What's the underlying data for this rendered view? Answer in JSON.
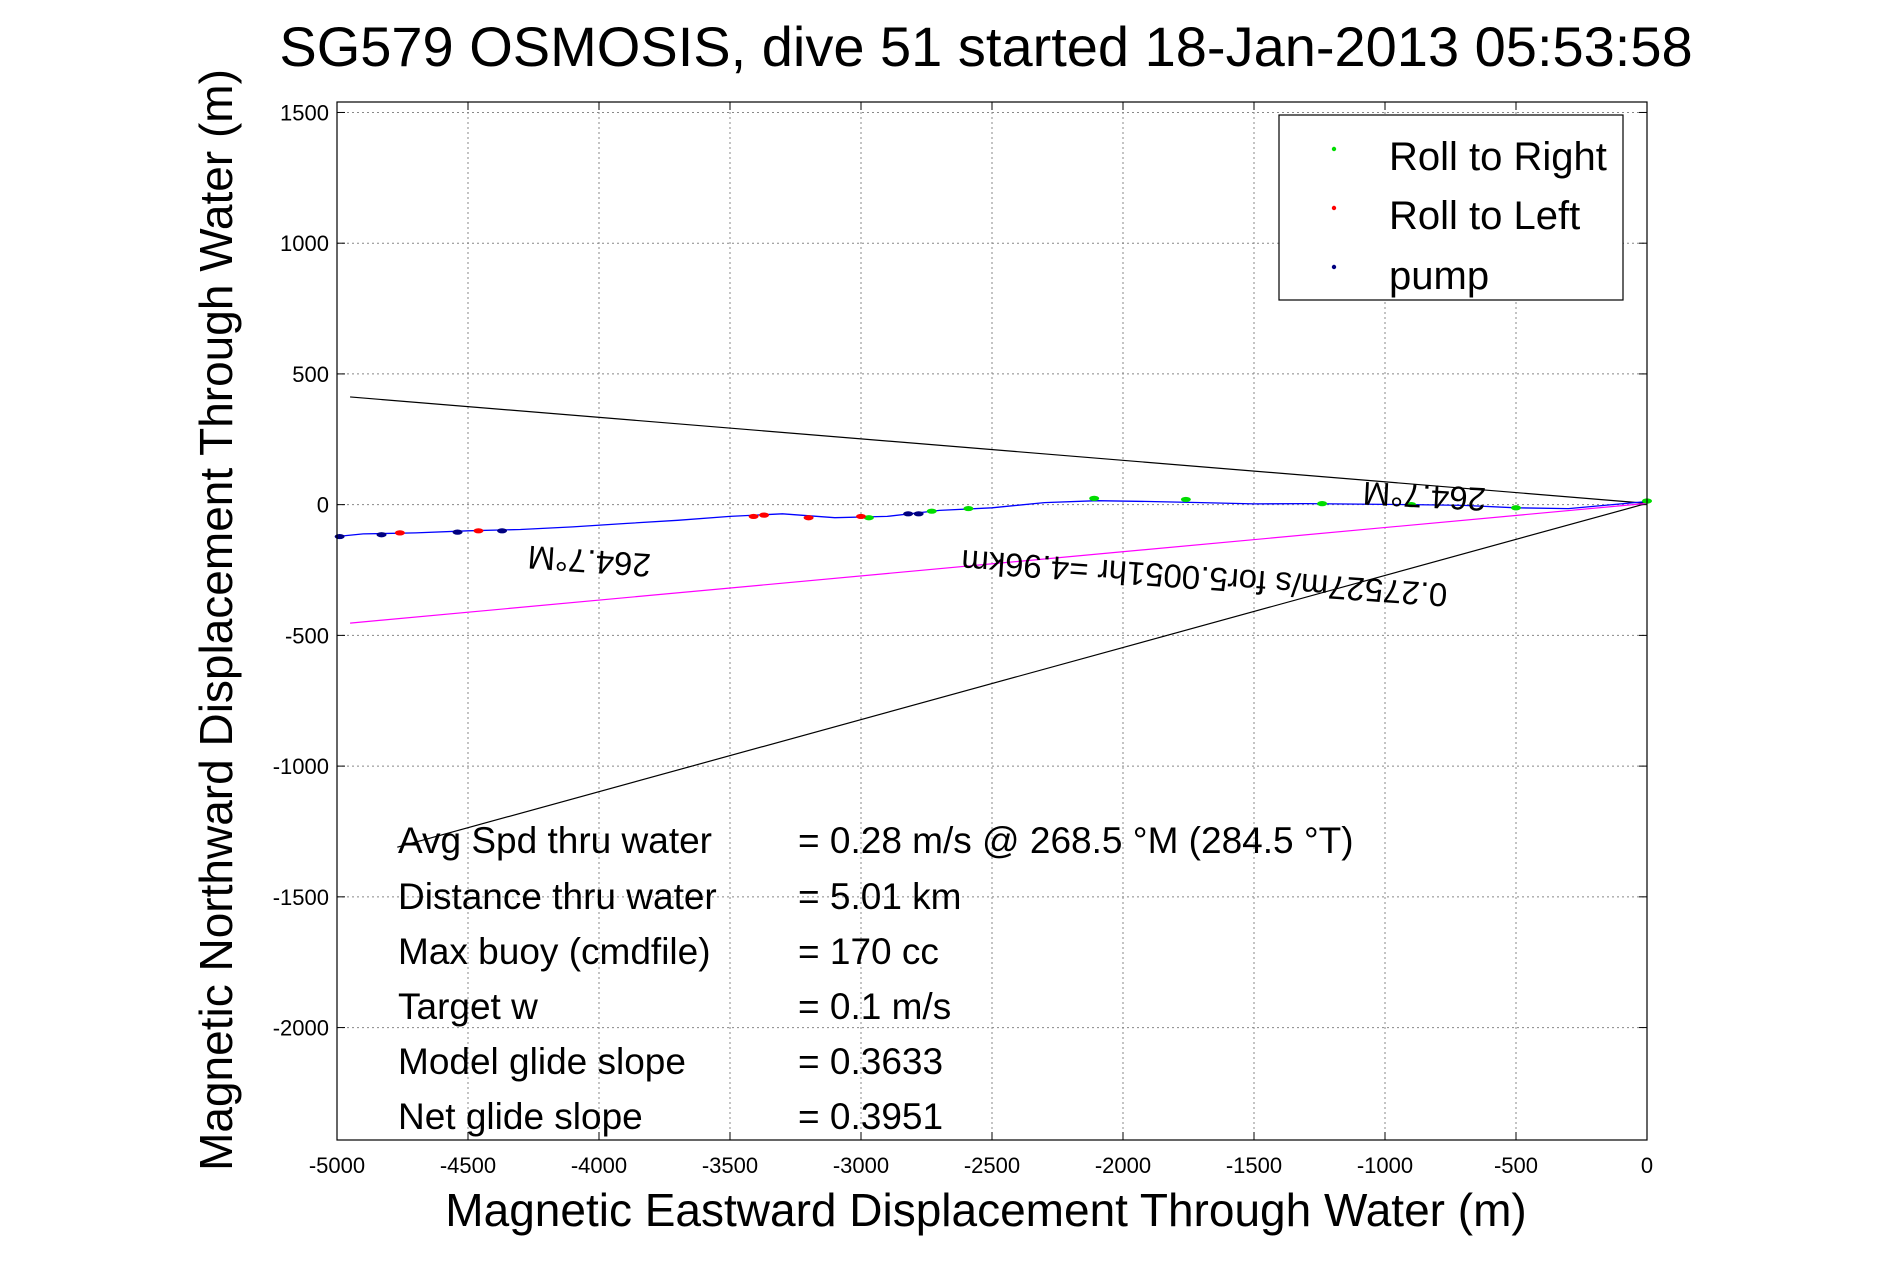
{
  "chart_data": {
    "type": "line",
    "title": "SG579 OSMOSIS, dive 51 started 18-Jan-2013 05:53:58",
    "xlabel": "Magnetic Eastward Displacement Through Water (m)",
    "ylabel": "Magnetic Northward Displacement Through Water (m)",
    "xlim": [
      -5000,
      0
    ],
    "ylim": [
      -2430,
      1540
    ],
    "xticks": [
      -5000,
      -4500,
      -4000,
      -3500,
      -3000,
      -2500,
      -2000,
      -1500,
      -1000,
      -500,
      0
    ],
    "yticks": [
      -2000,
      -1500,
      -1000,
      -500,
      0,
      500,
      1000,
      1500
    ],
    "xtick_labels": [
      "-5000",
      "-4500",
      "-4000",
      "-3500",
      "-3000",
      "-2500",
      "-2000",
      "-1500",
      "-1000",
      "-500",
      "0"
    ],
    "ytick_labels": [
      "-2000",
      "-1500",
      "-1000",
      "-500",
      "0",
      "500",
      "1000",
      "1500"
    ],
    "grid": true,
    "legend_position": "top-right",
    "legend": [
      {
        "label": "Roll to Right",
        "color": "#00dd00"
      },
      {
        "label": "Roll to Left",
        "color": "#ff0000"
      },
      {
        "label": "pump",
        "color": "#000080"
      }
    ],
    "track": {
      "color": "#0000ff",
      "x": [
        0,
        -300,
        -500,
        -700,
        -900,
        -1100,
        -1300,
        -1500,
        -1700,
        -1900,
        -2100,
        -2300,
        -2500,
        -2700,
        -2900,
        -3100,
        -3300,
        -3500,
        -3700,
        -3900,
        -4100,
        -4300,
        -4500,
        -4700,
        -4900,
        -5000
      ],
      "y": [
        12,
        -15,
        -12,
        -3,
        0,
        2,
        4,
        3,
        8,
        12,
        15,
        8,
        -12,
        -22,
        -45,
        -50,
        -35,
        -45,
        -60,
        -72,
        -85,
        -95,
        -100,
        -108,
        -112,
        -122
      ]
    },
    "points": {
      "roll_right": {
        "x": [
          0,
          -500,
          -900,
          -1240,
          -1760,
          -2110,
          -2590,
          -2730,
          -2970
        ],
        "y": [
          14,
          -12,
          0,
          4,
          20,
          24,
          -15,
          -25,
          -50
        ]
      },
      "roll_left": {
        "x": [
          -3000,
          -3200,
          -3370,
          -3410,
          -4460,
          -4760
        ],
        "y": [
          -45,
          -50,
          -40,
          -45,
          -100,
          -108
        ]
      },
      "pump": {
        "x": [
          -2820,
          -2780,
          -4370,
          -4540,
          -4830,
          -4990
        ],
        "y": [
          -35,
          -35,
          -100,
          -105,
          -115,
          -122
        ]
      }
    },
    "lines": [
      {
        "name": "heading_upper",
        "color": "#000000",
        "x": [
          0,
          -4950
        ],
        "y": [
          5,
          412
        ]
      },
      {
        "name": "heading_lower",
        "color": "#000000",
        "x": [
          0,
          -4770
        ],
        "y": [
          5,
          -1310
        ]
      },
      {
        "name": "heading_mid",
        "color": "#ff00ff",
        "x": [
          0,
          -4950
        ],
        "y": [
          5,
          -453
        ]
      }
    ],
    "annotations": {
      "heading_left": "264.7°M",
      "heading_right": "264.7°M",
      "speed_line": "0.27527m/s for5.0051hr =4.96km"
    },
    "stats": [
      {
        "label": "Avg Spd thru water",
        "value": "=  0.28 m/s @ 268.5 °M (284.5 °T)"
      },
      {
        "label": "Distance thru water",
        "value": "=  5.01 km"
      },
      {
        "label": "Max buoy (cmdfile)",
        "value": "= 170 cc"
      },
      {
        "label": "Target w",
        "value": "= 0.1 m/s"
      },
      {
        "label": "Model glide slope",
        "value": "= 0.3633"
      },
      {
        "label": "Net glide slope",
        "value": "= 0.3951"
      }
    ]
  }
}
